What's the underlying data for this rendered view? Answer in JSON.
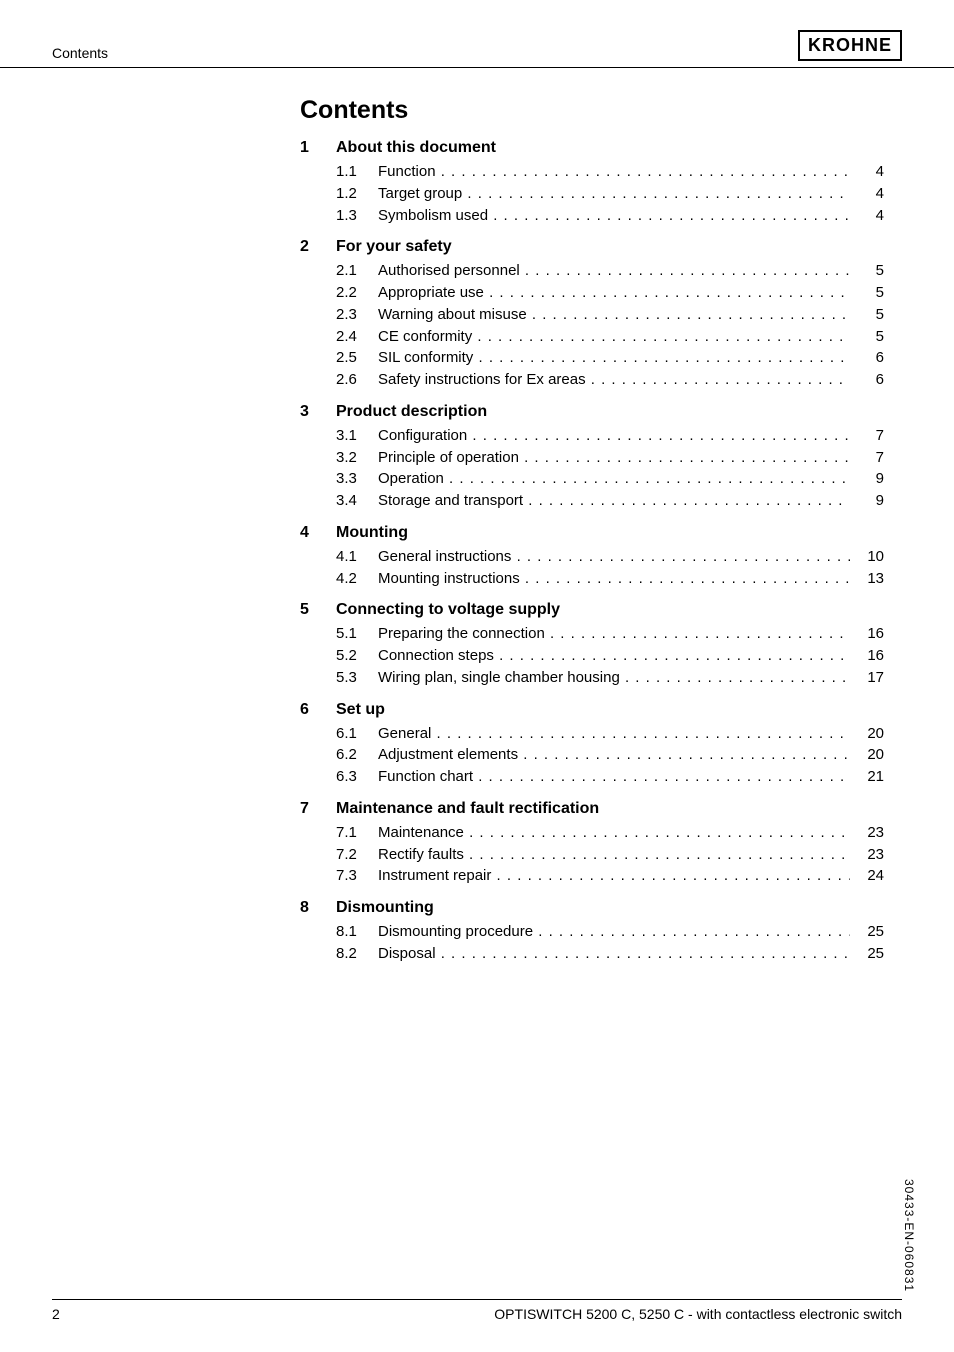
{
  "header": {
    "left": "Contents",
    "brand": "KROHNE"
  },
  "title": "Contents",
  "sections": [
    {
      "num": "1",
      "title": "About this document",
      "subs": [
        {
          "num": "1.1",
          "label": "Function",
          "page": "4"
        },
        {
          "num": "1.2",
          "label": "Target group",
          "page": "4"
        },
        {
          "num": "1.3",
          "label": "Symbolism used",
          "page": "4"
        }
      ]
    },
    {
      "num": "2",
      "title": "For your safety",
      "subs": [
        {
          "num": "2.1",
          "label": "Authorised personnel",
          "page": "5"
        },
        {
          "num": "2.2",
          "label": "Appropriate use",
          "page": "5"
        },
        {
          "num": "2.3",
          "label": "Warning about misuse",
          "page": "5"
        },
        {
          "num": "2.4",
          "label": "CE conformity",
          "page": "5"
        },
        {
          "num": "2.5",
          "label": "SIL conformity",
          "page": "6"
        },
        {
          "num": "2.6",
          "label": "Safety instructions for Ex areas",
          "page": "6"
        }
      ]
    },
    {
      "num": "3",
      "title": "Product description",
      "subs": [
        {
          "num": "3.1",
          "label": "Configuration",
          "page": "7"
        },
        {
          "num": "3.2",
          "label": "Principle of operation",
          "page": "7"
        },
        {
          "num": "3.3",
          "label": "Operation",
          "page": "9"
        },
        {
          "num": "3.4",
          "label": "Storage and transport",
          "page": "9"
        }
      ]
    },
    {
      "num": "4",
      "title": "Mounting",
      "subs": [
        {
          "num": "4.1",
          "label": "General instructions",
          "page": "10"
        },
        {
          "num": "4.2",
          "label": "Mounting instructions",
          "page": "13"
        }
      ]
    },
    {
      "num": "5",
      "title": "Connecting to voltage supply",
      "subs": [
        {
          "num": "5.1",
          "label": "Preparing the connection",
          "page": "16"
        },
        {
          "num": "5.2",
          "label": "Connection steps",
          "page": "16"
        },
        {
          "num": "5.3",
          "label": "Wiring plan, single chamber housing",
          "page": "17"
        }
      ]
    },
    {
      "num": "6",
      "title": "Set up",
      "subs": [
        {
          "num": "6.1",
          "label": "General",
          "page": "20"
        },
        {
          "num": "6.2",
          "label": "Adjustment elements",
          "page": "20"
        },
        {
          "num": "6.3",
          "label": "Function chart",
          "page": "21"
        }
      ]
    },
    {
      "num": "7",
      "title": "Maintenance and fault rectification",
      "subs": [
        {
          "num": "7.1",
          "label": "Maintenance",
          "page": "23"
        },
        {
          "num": "7.2",
          "label": "Rectify faults",
          "page": "23"
        },
        {
          "num": "7.3",
          "label": "Instrument repair",
          "page": "24"
        }
      ]
    },
    {
      "num": "8",
      "title": "Dismounting",
      "subs": [
        {
          "num": "8.1",
          "label": "Dismounting procedure",
          "page": "25"
        },
        {
          "num": "8.2",
          "label": "Disposal",
          "page": "25"
        }
      ]
    }
  ],
  "footer": {
    "pagenum": "2",
    "text": "OPTISWITCH 5200 C, 5250 C - with contactless electronic switch"
  },
  "side_code": "30433-EN-060831"
}
